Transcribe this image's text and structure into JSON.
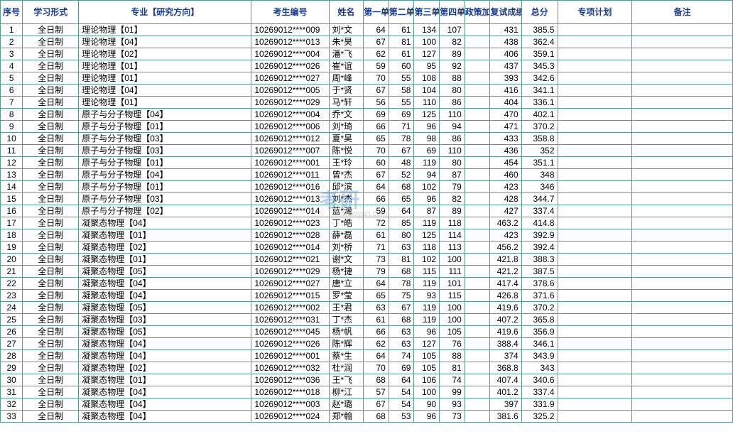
{
  "header": {
    "seq": "序号",
    "study_mode": "学习形式",
    "major": "专业【研究方向】",
    "exam_no": "考生编号",
    "name": "姓名",
    "unit1": "第一单元",
    "unit2": "第二单元",
    "unit3": "第三单元",
    "unit4": "第四单元",
    "policy_bonus": "政策加分",
    "interview_score": "复试成绩",
    "total": "总分",
    "special_plan": "专项计划",
    "remark": "备注"
  },
  "colors": {
    "border": "#5a9b8f",
    "header_text": "#1a3a8a",
    "watermark": "#4a90d9"
  },
  "rows": [
    {
      "seq": "1",
      "study": "全日制",
      "major": "理论物理【01】",
      "examno": "10269012****009",
      "name": "刘*文",
      "u1": "64",
      "u2": "61",
      "u3": "134",
      "u4": "107",
      "policy": "",
      "interview": "431",
      "total": "385.5",
      "special": "",
      "remark": ""
    },
    {
      "seq": "2",
      "study": "全日制",
      "major": "理论物理【04】",
      "examno": "10269012****013",
      "name": "朱*昊",
      "u1": "67",
      "u2": "81",
      "u3": "100",
      "u4": "82",
      "policy": "",
      "interview": "438",
      "total": "362.4",
      "special": "",
      "remark": ""
    },
    {
      "seq": "3",
      "study": "全日制",
      "major": "理论物理【02】",
      "examno": "10269012****004",
      "name": "潘*飞",
      "u1": "62",
      "u2": "61",
      "u3": "127",
      "u4": "89",
      "policy": "",
      "interview": "406",
      "total": "359.1",
      "special": "",
      "remark": ""
    },
    {
      "seq": "4",
      "study": "全日制",
      "major": "理论物理【01】",
      "examno": "10269012****026",
      "name": "崔*谊",
      "u1": "59",
      "u2": "60",
      "u3": "95",
      "u4": "92",
      "policy": "",
      "interview": "437",
      "total": "345.3",
      "special": "",
      "remark": ""
    },
    {
      "seq": "5",
      "study": "全日制",
      "major": "理论物理【01】",
      "examno": "10269012****027",
      "name": "周*峰",
      "u1": "70",
      "u2": "55",
      "u3": "108",
      "u4": "88",
      "policy": "",
      "interview": "393",
      "total": "342.6",
      "special": "",
      "remark": ""
    },
    {
      "seq": "6",
      "study": "全日制",
      "major": "理论物理【04】",
      "examno": "10269012****005",
      "name": "于*贤",
      "u1": "67",
      "u2": "58",
      "u3": "104",
      "u4": "80",
      "policy": "",
      "interview": "416",
      "total": "341.1",
      "special": "",
      "remark": ""
    },
    {
      "seq": "7",
      "study": "全日制",
      "major": "理论物理【01】",
      "examno": "10269012****029",
      "name": "马*轩",
      "u1": "56",
      "u2": "55",
      "u3": "110",
      "u4": "86",
      "policy": "",
      "interview": "404",
      "total": "336.1",
      "special": "",
      "remark": ""
    },
    {
      "seq": "8",
      "study": "全日制",
      "major": "原子与分子物理【04】",
      "examno": "10269012****004",
      "name": "乔*文",
      "u1": "69",
      "u2": "69",
      "u3": "125",
      "u4": "110",
      "policy": "",
      "interview": "470",
      "total": "402.1",
      "special": "",
      "remark": ""
    },
    {
      "seq": "9",
      "study": "全日制",
      "major": "原子与分子物理【01】",
      "examno": "10269012****006",
      "name": "刘*琦",
      "u1": "66",
      "u2": "71",
      "u3": "96",
      "u4": "94",
      "policy": "",
      "interview": "471",
      "total": "370.2",
      "special": "",
      "remark": ""
    },
    {
      "seq": "10",
      "study": "全日制",
      "major": "原子与分子物理【03】",
      "examno": "10269012****012",
      "name": "夏*昊",
      "u1": "65",
      "u2": "78",
      "u3": "98",
      "u4": "86",
      "policy": "",
      "interview": "433",
      "total": "358.8",
      "special": "",
      "remark": ""
    },
    {
      "seq": "11",
      "study": "全日制",
      "major": "原子与分子物理【03】",
      "examno": "10269012****007",
      "name": "陈*悦",
      "u1": "70",
      "u2": "67",
      "u3": "69",
      "u4": "110",
      "policy": "",
      "interview": "436",
      "total": "352",
      "special": "",
      "remark": ""
    },
    {
      "seq": "12",
      "study": "全日制",
      "major": "原子与分子物理【01】",
      "examno": "10269012****001",
      "name": "王*玲",
      "u1": "60",
      "u2": "48",
      "u3": "119",
      "u4": "80",
      "policy": "",
      "interview": "454",
      "total": "351.1",
      "special": "",
      "remark": ""
    },
    {
      "seq": "13",
      "study": "全日制",
      "major": "原子与分子物理【04】",
      "examno": "10269012****011",
      "name": "曾*杰",
      "u1": "67",
      "u2": "52",
      "u3": "94",
      "u4": "87",
      "policy": "",
      "interview": "460",
      "total": "348",
      "special": "",
      "remark": ""
    },
    {
      "seq": "14",
      "study": "全日制",
      "major": "原子与分子物理【01】",
      "examno": "10269012****016",
      "name": "邱*滨",
      "u1": "64",
      "u2": "68",
      "u3": "102",
      "u4": "79",
      "policy": "",
      "interview": "423",
      "total": "346",
      "special": "",
      "remark": ""
    },
    {
      "seq": "15",
      "study": "全日制",
      "major": "原子与分子物理【03】",
      "examno": "10269012****013",
      "name": "刘*杰",
      "u1": "66",
      "u2": "65",
      "u3": "96",
      "u4": "82",
      "policy": "",
      "interview": "428",
      "total": "344.7",
      "special": "",
      "remark": ""
    },
    {
      "seq": "16",
      "study": "全日制",
      "major": "原子与分子物理【02】",
      "examno": "10269012****014",
      "name": "蓝*灣",
      "u1": "59",
      "u2": "64",
      "u3": "87",
      "u4": "89",
      "policy": "",
      "interview": "427",
      "total": "337.4",
      "special": "",
      "remark": ""
    },
    {
      "seq": "17",
      "study": "全日制",
      "major": "凝聚态物理【04】",
      "examno": "10269012****023",
      "name": "丁*皓",
      "u1": "72",
      "u2": "85",
      "u3": "119",
      "u4": "118",
      "policy": "",
      "interview": "463.2",
      "total": "414.8",
      "special": "",
      "remark": ""
    },
    {
      "seq": "18",
      "study": "全日制",
      "major": "凝聚态物理【01】",
      "examno": "10269012****028",
      "name": "薛*磊",
      "u1": "61",
      "u2": "80",
      "u3": "125",
      "u4": "114",
      "policy": "",
      "interview": "423",
      "total": "392.9",
      "special": "",
      "remark": ""
    },
    {
      "seq": "19",
      "study": "全日制",
      "major": "凝聚态物理【02】",
      "examno": "10269012****014",
      "name": "刘*桥",
      "u1": "71",
      "u2": "63",
      "u3": "118",
      "u4": "113",
      "policy": "",
      "interview": "456.2",
      "total": "392.4",
      "special": "",
      "remark": ""
    },
    {
      "seq": "20",
      "study": "全日制",
      "major": "凝聚态物理【01】",
      "examno": "10269012****021",
      "name": "谢*文",
      "u1": "73",
      "u2": "81",
      "u3": "102",
      "u4": "100",
      "policy": "",
      "interview": "421.8",
      "total": "388.3",
      "special": "",
      "remark": ""
    },
    {
      "seq": "21",
      "study": "全日制",
      "major": "凝聚态物理【05】",
      "examno": "10269012****029",
      "name": "杨*捷",
      "u1": "79",
      "u2": "68",
      "u3": "115",
      "u4": "111",
      "policy": "",
      "interview": "421.2",
      "total": "387.5",
      "special": "",
      "remark": ""
    },
    {
      "seq": "22",
      "study": "全日制",
      "major": "凝聚态物理【04】",
      "examno": "10269012****027",
      "name": "唐*立",
      "u1": "64",
      "u2": "78",
      "u3": "119",
      "u4": "101",
      "policy": "",
      "interview": "417.4",
      "total": "378.6",
      "special": "",
      "remark": ""
    },
    {
      "seq": "23",
      "study": "全日制",
      "major": "凝聚态物理【04】",
      "examno": "10269012****015",
      "name": "罗*莹",
      "u1": "65",
      "u2": "75",
      "u3": "93",
      "u4": "115",
      "policy": "",
      "interview": "426.8",
      "total": "371.6",
      "special": "",
      "remark": ""
    },
    {
      "seq": "24",
      "study": "全日制",
      "major": "凝聚态物理【05】",
      "examno": "10269012****002",
      "name": "王*君",
      "u1": "63",
      "u2": "67",
      "u3": "119",
      "u4": "100",
      "policy": "",
      "interview": "419.6",
      "total": "370.2",
      "special": "",
      "remark": ""
    },
    {
      "seq": "25",
      "study": "全日制",
      "major": "凝聚态物理【03】",
      "examno": "10269012****031",
      "name": "丁*杰",
      "u1": "61",
      "u2": "68",
      "u3": "119",
      "u4": "100",
      "policy": "",
      "interview": "407.2",
      "total": "365.8",
      "special": "",
      "remark": ""
    },
    {
      "seq": "26",
      "study": "全日制",
      "major": "凝聚态物理【05】",
      "examno": "10269012****045",
      "name": "杨*帆",
      "u1": "66",
      "u2": "63",
      "u3": "96",
      "u4": "105",
      "policy": "",
      "interview": "419.6",
      "total": "356.9",
      "special": "",
      "remark": ""
    },
    {
      "seq": "27",
      "study": "全日制",
      "major": "凝聚态物理【04】",
      "examno": "10269012****026",
      "name": "陈*辉",
      "u1": "62",
      "u2": "63",
      "u3": "127",
      "u4": "76",
      "policy": "",
      "interview": "388.4",
      "total": "346.1",
      "special": "",
      "remark": ""
    },
    {
      "seq": "28",
      "study": "全日制",
      "major": "凝聚态物理【04】",
      "examno": "10269012****001",
      "name": "蔡*生",
      "u1": "64",
      "u2": "74",
      "u3": "105",
      "u4": "88",
      "policy": "",
      "interview": "374",
      "total": "343.9",
      "special": "",
      "remark": ""
    },
    {
      "seq": "29",
      "study": "全日制",
      "major": "凝聚态物理【02】",
      "examno": "10269012****032",
      "name": "杜*润",
      "u1": "70",
      "u2": "69",
      "u3": "105",
      "u4": "81",
      "policy": "",
      "interview": "368.8",
      "total": "343",
      "special": "",
      "remark": ""
    },
    {
      "seq": "30",
      "study": "全日制",
      "major": "凝聚态物理【01】",
      "examno": "10269012****036",
      "name": "王*飞",
      "u1": "68",
      "u2": "64",
      "u3": "106",
      "u4": "74",
      "policy": "",
      "interview": "407.4",
      "total": "340.6",
      "special": "",
      "remark": ""
    },
    {
      "seq": "31",
      "study": "全日制",
      "major": "凝聚态物理【04】",
      "examno": "10269012****018",
      "name": "柳*江",
      "u1": "57",
      "u2": "54",
      "u3": "100",
      "u4": "99",
      "policy": "",
      "interview": "401.2",
      "total": "337.4",
      "special": "",
      "remark": ""
    },
    {
      "seq": "32",
      "study": "全日制",
      "major": "凝聚态物理【04】",
      "examno": "10269012****003",
      "name": "赵*璐",
      "u1": "67",
      "u2": "54",
      "u3": "90",
      "u4": "93",
      "policy": "",
      "interview": "397",
      "total": "331.9",
      "special": "",
      "remark": ""
    },
    {
      "seq": "33",
      "study": "全日制",
      "major": "凝聚态物理【04】",
      "examno": "10269012****024",
      "name": "郑*翰",
      "u1": "68",
      "u2": "53",
      "u3": "96",
      "u4": "73",
      "policy": "",
      "interview": "381.6",
      "total": "325.2",
      "special": "",
      "remark": ""
    }
  ],
  "watermark": {
    "main": "考研",
    "sub": "okaoyan.com"
  }
}
